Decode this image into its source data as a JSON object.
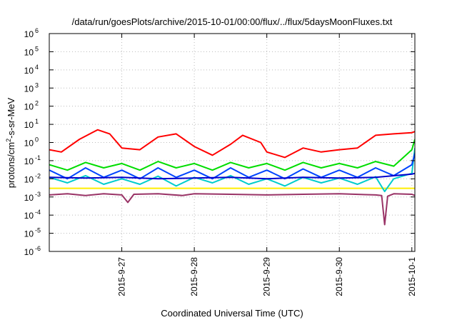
{
  "chart_data": {
    "type": "line",
    "title": "/data/run/goesPlots/archive/2015-10-01/00:00/flux/../flux/5daysMoonFluxes.txt",
    "xlabel": "Coordinated Universal Time (UTC)",
    "ylabel": {
      "prefix": "protons/cm",
      "sup": "2",
      "suffix": "-s-sr-MeV"
    },
    "y_scale": "log",
    "ylim": [
      1e-06,
      1000000.0
    ],
    "xlim": [
      "2015-09-26T00:00",
      "2015-10-01T01:00"
    ],
    "grid": "dotted",
    "legend": "none",
    "y_ticks": [
      {
        "exp": "-6",
        "value": 1e-06
      },
      {
        "exp": "-5",
        "value": 1e-05
      },
      {
        "exp": "-4",
        "value": 0.0001
      },
      {
        "exp": "-3",
        "value": 0.001
      },
      {
        "exp": "-2",
        "value": 0.01
      },
      {
        "exp": "-1",
        "value": 0.1
      },
      {
        "exp": "0",
        "value": 1
      },
      {
        "exp": "1",
        "value": 10
      },
      {
        "exp": "2",
        "value": 100
      },
      {
        "exp": "3",
        "value": 1000
      },
      {
        "exp": "4",
        "value": 10000
      },
      {
        "exp": "5",
        "value": 100000
      },
      {
        "exp": "6",
        "value": 1000000
      }
    ],
    "x_ticks": [
      {
        "label": "2015-9-27",
        "value": "2015-09-27T00:00"
      },
      {
        "label": "2015-9-28",
        "value": "2015-09-28T00:00"
      },
      {
        "label": "2015-9-29",
        "value": "2015-09-29T00:00"
      },
      {
        "label": "2015-9-30",
        "value": "2015-09-30T00:00"
      },
      {
        "label": "2015-10-1",
        "value": "2015-10-01T00:00"
      }
    ],
    "series": [
      {
        "color": "#ffee00",
        "x": [
          "2015-09-26T00:00",
          "2015-09-26T12:00",
          "2015-09-27T00:00",
          "2015-09-27T12:00",
          "2015-09-28T00:00",
          "2015-09-28T12:00",
          "2015-09-29T00:00",
          "2015-09-29T12:00",
          "2015-09-30T00:00",
          "2015-09-30T12:00",
          "2015-10-01T00:00",
          "2015-10-01T01:00"
        ],
        "y": [
          0.003,
          0.003,
          0.003,
          0.003,
          0.003,
          0.003,
          0.003,
          0.003,
          0.003,
          0.003,
          0.003,
          0.003
        ]
      },
      {
        "color": "#993366",
        "x": [
          "2015-09-26T00:00",
          "2015-09-26T06:00",
          "2015-09-26T12:00",
          "2015-09-26T18:00",
          "2015-09-27T00:00",
          "2015-09-27T02:00",
          "2015-09-27T04:00",
          "2015-09-27T12:00",
          "2015-09-27T20:00",
          "2015-09-28T00:00",
          "2015-09-28T12:00",
          "2015-09-29T00:00",
          "2015-09-29T12:00",
          "2015-09-30T00:00",
          "2015-09-30T12:00",
          "2015-09-30T14:00",
          "2015-09-30T15:00",
          "2015-09-30T16:00",
          "2015-09-30T18:00",
          "2015-10-01T00:00",
          "2015-10-01T01:00"
        ],
        "y": [
          0.0013,
          0.0015,
          0.0012,
          0.0015,
          0.0013,
          0.0005,
          0.0014,
          0.0015,
          0.0012,
          0.0015,
          0.0014,
          0.0013,
          0.0014,
          0.0015,
          0.0013,
          0.0012,
          3e-05,
          0.0011,
          0.0015,
          0.0014,
          0.0012
        ]
      },
      {
        "color": "#00cccc",
        "x": [
          "2015-09-26T00:00",
          "2015-09-26T06:00",
          "2015-09-26T12:00",
          "2015-09-26T18:00",
          "2015-09-27T00:00",
          "2015-09-27T06:00",
          "2015-09-27T12:00",
          "2015-09-27T18:00",
          "2015-09-28T00:00",
          "2015-09-28T06:00",
          "2015-09-28T12:00",
          "2015-09-28T18:00",
          "2015-09-29T00:00",
          "2015-09-29T06:00",
          "2015-09-29T12:00",
          "2015-09-29T18:00",
          "2015-09-30T00:00",
          "2015-09-30T06:00",
          "2015-09-30T12:00",
          "2015-09-30T15:00",
          "2015-09-30T18:00",
          "2015-10-01T00:00",
          "2015-10-01T01:00"
        ],
        "y": [
          0.012,
          0.006,
          0.015,
          0.005,
          0.01,
          0.005,
          0.014,
          0.004,
          0.012,
          0.006,
          0.015,
          0.005,
          0.01,
          0.004,
          0.012,
          0.006,
          0.011,
          0.005,
          0.013,
          0.002,
          0.01,
          0.02,
          0.5
        ]
      },
      {
        "color": "#0044ff",
        "x": [
          "2015-09-26T00:00",
          "2015-09-26T06:00",
          "2015-09-26T12:00",
          "2015-09-26T18:00",
          "2015-09-27T00:00",
          "2015-09-27T06:00",
          "2015-09-27T12:00",
          "2015-09-27T18:00",
          "2015-09-28T00:00",
          "2015-09-28T06:00",
          "2015-09-28T12:00",
          "2015-09-28T18:00",
          "2015-09-29T00:00",
          "2015-09-29T06:00",
          "2015-09-29T12:00",
          "2015-09-29T18:00",
          "2015-09-30T00:00",
          "2015-09-30T06:00",
          "2015-09-30T12:00",
          "2015-09-30T18:00",
          "2015-10-01T00:00",
          "2015-10-01T01:00"
        ],
        "y": [
          0.03,
          0.01,
          0.04,
          0.012,
          0.03,
          0.01,
          0.04,
          0.012,
          0.03,
          0.01,
          0.04,
          0.012,
          0.03,
          0.01,
          0.035,
          0.012,
          0.03,
          0.012,
          0.04,
          0.015,
          0.06,
          0.25
        ]
      },
      {
        "color": "#00dd00",
        "x": [
          "2015-09-26T00:00",
          "2015-09-26T06:00",
          "2015-09-26T12:00",
          "2015-09-26T18:00",
          "2015-09-27T00:00",
          "2015-09-27T06:00",
          "2015-09-27T12:00",
          "2015-09-27T18:00",
          "2015-09-28T00:00",
          "2015-09-28T06:00",
          "2015-09-28T12:00",
          "2015-09-28T18:00",
          "2015-09-29T00:00",
          "2015-09-29T06:00",
          "2015-09-29T12:00",
          "2015-09-29T18:00",
          "2015-09-30T00:00",
          "2015-09-30T06:00",
          "2015-09-30T12:00",
          "2015-09-30T18:00",
          "2015-10-01T00:00",
          "2015-10-01T01:00"
        ],
        "y": [
          0.06,
          0.03,
          0.08,
          0.04,
          0.07,
          0.03,
          0.09,
          0.04,
          0.07,
          0.03,
          0.08,
          0.04,
          0.07,
          0.03,
          0.08,
          0.04,
          0.07,
          0.04,
          0.09,
          0.05,
          0.4,
          1.5
        ]
      },
      {
        "color": "#0000cc",
        "x": [
          "2015-09-26T00:00",
          "2015-09-26T12:00",
          "2015-09-27T00:00",
          "2015-09-27T12:00",
          "2015-09-28T00:00",
          "2015-09-28T12:00",
          "2015-09-29T00:00",
          "2015-09-29T12:00",
          "2015-09-30T00:00",
          "2015-09-30T12:00",
          "2015-10-01T00:00",
          "2015-10-01T01:00"
        ],
        "y": [
          0.012,
          0.011,
          0.012,
          0.01,
          0.011,
          0.012,
          0.01,
          0.012,
          0.011,
          0.012,
          0.018,
          0.02
        ]
      },
      {
        "color": "#ff0000",
        "x": [
          "2015-09-26T00:00",
          "2015-09-26T04:00",
          "2015-09-26T10:00",
          "2015-09-26T16:00",
          "2015-09-26T20:00",
          "2015-09-27T00:00",
          "2015-09-27T06:00",
          "2015-09-27T12:00",
          "2015-09-27T18:00",
          "2015-09-28T00:00",
          "2015-09-28T06:00",
          "2015-09-28T12:00",
          "2015-09-28T16:00",
          "2015-09-28T22:00",
          "2015-09-29T00:00",
          "2015-09-29T06:00",
          "2015-09-29T12:00",
          "2015-09-29T18:00",
          "2015-09-30T00:00",
          "2015-09-30T06:00",
          "2015-09-30T12:00",
          "2015-09-30T18:00",
          "2015-10-01T00:00",
          "2015-10-01T01:00"
        ],
        "y": [
          0.4,
          0.3,
          1.5,
          5,
          3,
          0.5,
          0.4,
          2,
          3,
          0.6,
          0.2,
          0.8,
          2.5,
          1,
          0.3,
          0.15,
          0.5,
          0.3,
          0.4,
          0.5,
          2.5,
          3,
          3.5,
          4
        ]
      }
    ]
  }
}
